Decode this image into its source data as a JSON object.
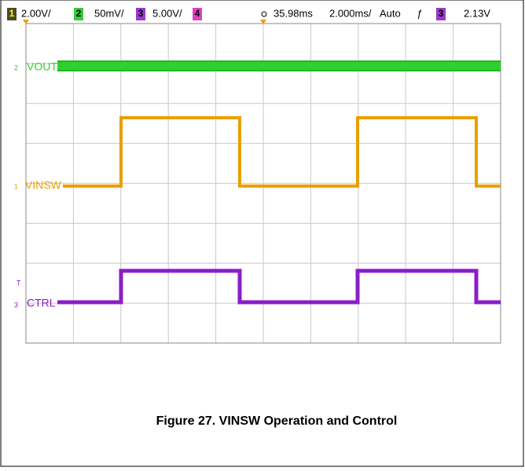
{
  "header": {
    "channels": [
      {
        "number": "1",
        "scale": "2.00V/"
      },
      {
        "number": "2",
        "scale": "50mV/"
      },
      {
        "number": "3",
        "scale": "5.00V/"
      },
      {
        "number": "4"
      }
    ],
    "time_delay": "35.98ms",
    "timebase": "2.000ms/",
    "trigger_mode": "Auto",
    "trigger_source": "3",
    "trigger_level": "2.13V"
  },
  "traces": [
    {
      "number": "2",
      "label": "VOUT"
    },
    {
      "number": "1",
      "label": "VINSW"
    },
    {
      "number": "3",
      "label": "CTRL"
    }
  ],
  "trigger_marker": "T",
  "caption": "Figure 27. VINSW Operation and Control"
}
